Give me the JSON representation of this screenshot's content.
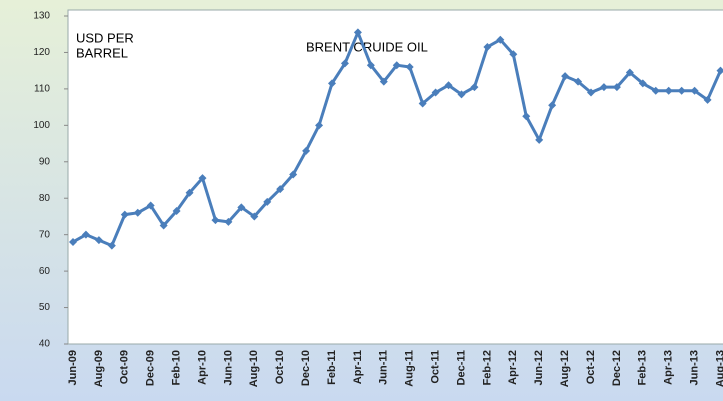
{
  "chart_data": {
    "type": "line",
    "title": "BRENT CRUIDE OIL",
    "y_label": [
      "USD PER",
      "BARREL"
    ],
    "categories": [
      "Jun-09",
      null,
      "Aug-09",
      null,
      "Oct-09",
      null,
      "Dec-09",
      null,
      "Feb-10",
      null,
      "Apr-10",
      null,
      "Jun-10",
      null,
      "Aug-10",
      null,
      "Oct-10",
      null,
      "Dec-10",
      null,
      "Feb-11",
      null,
      "Apr-11",
      null,
      "Jun-11",
      null,
      "Aug-11",
      null,
      "Oct-11",
      null,
      "Dec-11",
      null,
      "Feb-12",
      null,
      "Apr-12",
      null,
      "Jun-12",
      null,
      "Aug-12",
      null,
      "Oct-12",
      null,
      "Dec-12",
      null,
      "Feb-13",
      null,
      "Apr-13",
      null,
      "Jun-13",
      null,
      "Aug-13"
    ],
    "series": [
      {
        "name": "Brent",
        "color": "#4a7ebb",
        "values": [
          68,
          70,
          68.5,
          67,
          75.5,
          76,
          78,
          72.5,
          76.5,
          81.5,
          85.5,
          74,
          73.5,
          77.5,
          75,
          79,
          82.5,
          86.5,
          93,
          100,
          111.5,
          117,
          125.5,
          116.5,
          112,
          116.5,
          116,
          106,
          109,
          111,
          108.5,
          110.5,
          121.5,
          123.5,
          119.5,
          102.5,
          96,
          105.5,
          113.5,
          112,
          109,
          110.5,
          110.5,
          114.5,
          111.5,
          109.5,
          109.5,
          109.5,
          109.5,
          107,
          115
        ]
      }
    ],
    "ylim": [
      40,
      130
    ],
    "yticks": [
      40,
      50,
      60,
      70,
      80,
      90,
      100,
      110,
      120,
      130
    ]
  }
}
